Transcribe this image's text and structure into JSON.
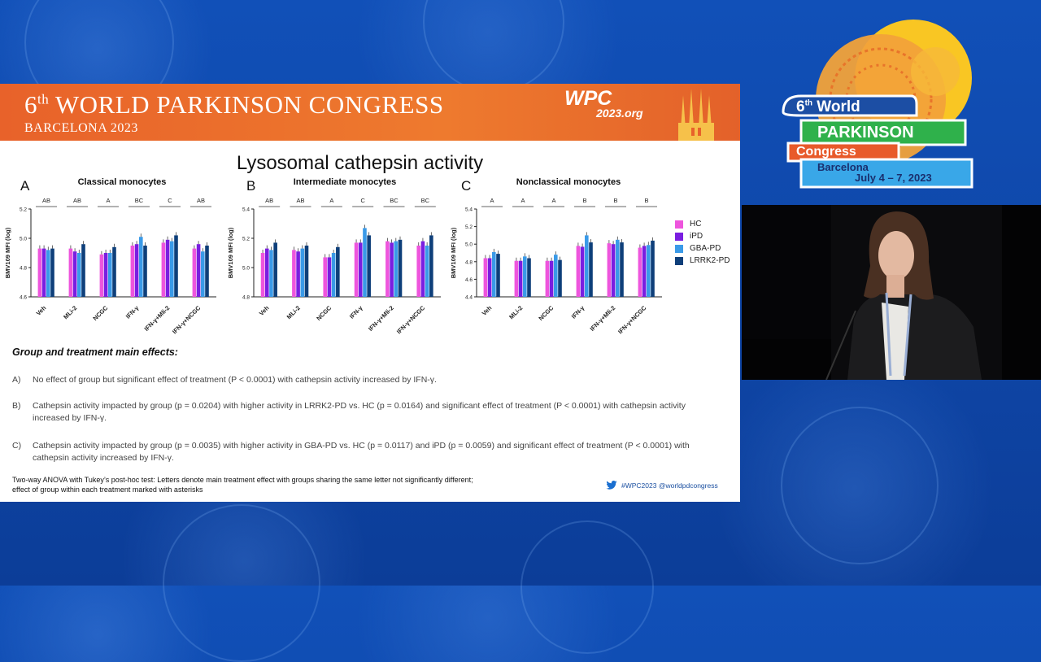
{
  "slide": {
    "banner": {
      "title_ordinal_num": "6",
      "title_ordinal_suffix": "th",
      "title_rest": " WORLD PARKINSON CONGRESS",
      "subtitle": "BARCELONA 2023",
      "wpc_line1": "WPC",
      "wpc_line2": "2023.org"
    },
    "title": "Lysosomal cathepsin activity",
    "panels": [
      {
        "letter": "A",
        "title": "Classical monocytes"
      },
      {
        "letter": "B",
        "title": "Intermediate monocytes"
      },
      {
        "letter": "C",
        "title": "Nonclassical monocytes"
      }
    ],
    "effects_heading": "Group and treatment main effects:",
    "effects": [
      {
        "key": "A)",
        "text": "No effect of group but significant effect of treatment (P < 0.0001) with cathepsin activity increased by IFN-γ."
      },
      {
        "key": "B)",
        "text": "Cathepsin activity impacted by group (p = 0.0204) with higher activity in LRRK2-PD vs. HC (p = 0.0164) and significant effect of treatment (P < 0.0001) with cathepsin activity increased by IFN-γ."
      },
      {
        "key": "C)",
        "text": "Cathepsin activity impacted by group (p = 0.0035) with higher activity in GBA-PD vs. HC (p = 0.0117) and iPD (p = 0.0059) and significant effect of treatment (P < 0.0001) with cathepsin activity increased by IFN-γ."
      }
    ],
    "footnote_line1": "Two-way ANOVA with Tukey’s post-hoc test: Letters denote main treatment effect with groups sharing the same letter not significantly different;",
    "footnote_line2": "effect of group within each treatment marked with asterisks",
    "handle": "#WPC2023 @worldpdcongress"
  },
  "logo": {
    "line1_num": "6",
    "line1_suffix": "th",
    "line1_rest": " World",
    "line2": "PARKINSON",
    "line3": "Congress",
    "line4": "Barcelona",
    "line5": "July 4 – 7, 2023"
  },
  "colors": {
    "HC": "#ee55dd",
    "iPD": "#7a1ee0",
    "GBA-PD": "#3a9ae8",
    "LRRK2-PD": "#0e3f7a",
    "banner": "#e8622a"
  },
  "chart_data": [
    {
      "type": "bar",
      "title": "Classical monocytes",
      "ylabel": "BMV109 MFI (log)",
      "ylim": [
        4.6,
        5.2
      ],
      "yticks": [
        "4.6",
        "4.8",
        "5.0",
        "5.2"
      ],
      "categories": [
        "Veh",
        "MLi-2",
        "NCGC",
        "IFN-γ",
        "IFN-γ+Mli-2",
        "IFN-γ+NCGC"
      ],
      "letters": [
        "AB",
        "AB",
        "A",
        "BC",
        "C",
        "AB"
      ],
      "series": [
        {
          "name": "HC",
          "values": [
            4.93,
            4.93,
            4.89,
            4.95,
            4.97,
            4.93
          ]
        },
        {
          "name": "iPD",
          "values": [
            4.93,
            4.91,
            4.9,
            4.96,
            4.99,
            4.96
          ]
        },
        {
          "name": "GBA-PD",
          "values": [
            4.92,
            4.9,
            4.9,
            5.01,
            4.98,
            4.91
          ]
        },
        {
          "name": "LRRK2-PD",
          "values": [
            4.93,
            4.96,
            4.94,
            4.95,
            5.02,
            4.95
          ]
        }
      ]
    },
    {
      "type": "bar",
      "title": "Intermediate monocytes",
      "ylabel": "BMV109 MFI (log)",
      "ylim": [
        4.8,
        5.4
      ],
      "yticks": [
        "4.8",
        "5.0",
        "5.2",
        "5.4"
      ],
      "categories": [
        "Veh",
        "MLi-2",
        "NCGC",
        "IFN-γ",
        "IFN-γ+Mli-2",
        "IFN-γ+NCGC"
      ],
      "letters": [
        "AB",
        "AB",
        "A",
        "C",
        "BC",
        "BC"
      ],
      "series": [
        {
          "name": "HC",
          "values": [
            5.1,
            5.12,
            5.07,
            5.17,
            5.18,
            5.15
          ]
        },
        {
          "name": "iPD",
          "values": [
            5.13,
            5.11,
            5.07,
            5.17,
            5.17,
            5.18
          ]
        },
        {
          "name": "GBA-PD",
          "values": [
            5.12,
            5.13,
            5.1,
            5.27,
            5.18,
            5.15
          ]
        },
        {
          "name": "LRRK2-PD",
          "values": [
            5.17,
            5.15,
            5.14,
            5.22,
            5.19,
            5.22
          ]
        }
      ]
    },
    {
      "type": "bar",
      "title": "Nonclassical monocytes",
      "ylabel": "BMV109 MFI (log)",
      "ylim": [
        4.4,
        5.4
      ],
      "yticks": [
        "4.4",
        "4.6",
        "4.8",
        "5.0",
        "5.2",
        "5.4"
      ],
      "categories": [
        "Veh",
        "MLi-2",
        "NCGC",
        "IFN-γ",
        "IFN-γ+Mli-2",
        "IFN-γ+NCGC"
      ],
      "letters": [
        "A",
        "A",
        "A",
        "B",
        "B",
        "B"
      ],
      "series": [
        {
          "name": "HC",
          "values": [
            4.84,
            4.81,
            4.81,
            4.98,
            5.01,
            4.96
          ]
        },
        {
          "name": "iPD",
          "values": [
            4.84,
            4.81,
            4.81,
            4.97,
            5.0,
            4.98
          ]
        },
        {
          "name": "GBA-PD",
          "values": [
            4.91,
            4.86,
            4.88,
            5.1,
            5.05,
            4.99
          ]
        },
        {
          "name": "LRRK2-PD",
          "values": [
            4.89,
            4.84,
            4.82,
            5.02,
            5.02,
            5.04
          ]
        }
      ]
    }
  ]
}
